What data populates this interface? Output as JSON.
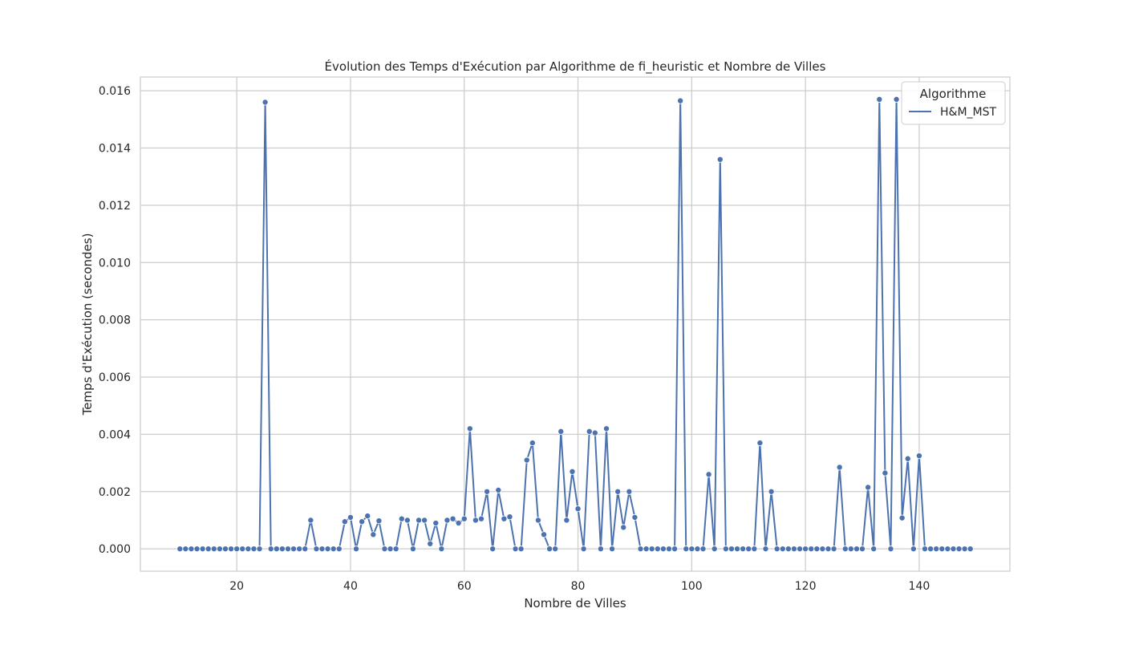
{
  "chart_data": {
    "type": "line",
    "title": "Évolution des Temps d'Exécution par Algorithme de fi_heuristic et Nombre de Villes",
    "xlabel": "Nombre de Villes",
    "ylabel": "Temps d'Exécution (secondes)",
    "xlim": [
      3.05,
      155.95
    ],
    "ylim": [
      -0.00078,
      0.01648
    ],
    "x_ticks": [
      20,
      40,
      60,
      80,
      100,
      120,
      140
    ],
    "x_tick_labels": [
      "20",
      "40",
      "60",
      "80",
      "100",
      "120",
      "140"
    ],
    "y_ticks": [
      0.0,
      0.002,
      0.004,
      0.006,
      0.008,
      0.01,
      0.012,
      0.014,
      0.016
    ],
    "y_tick_labels": [
      "0.000",
      "0.002",
      "0.004",
      "0.006",
      "0.008",
      "0.010",
      "0.012",
      "0.014",
      "0.016"
    ],
    "grid": true,
    "legend": {
      "title": "Algorithme",
      "placement": "top-right"
    },
    "colors": {
      "series": "#4c72b0",
      "grid": "#cccccc",
      "axes": "#cccccc",
      "text": "#262626"
    },
    "series": [
      {
        "name": "H&M_MST",
        "x_start": 10,
        "x_step": 1,
        "values": [
          0,
          0,
          0,
          0,
          0,
          0,
          0,
          0,
          0,
          0,
          0,
          0,
          0,
          0,
          0,
          0.0156,
          0,
          0,
          0,
          0,
          0,
          0,
          0,
          0.001,
          0,
          0,
          0,
          0,
          0,
          0.00095,
          0.0011,
          0,
          0.00095,
          0.00115,
          0.0005,
          0.00098,
          0,
          0,
          0,
          0.00105,
          0.001,
          0,
          0.001,
          0.001,
          0.00018,
          0.0009,
          0,
          0.001,
          0.00105,
          0.0009,
          0.00105,
          0.0042,
          0.001,
          0.00105,
          0.002,
          0,
          0.00205,
          0.00105,
          0.00112,
          0,
          0,
          0.0031,
          0.0037,
          0.001,
          0.0005,
          0,
          0,
          0.0041,
          0.001,
          0.0027,
          0.0014,
          0,
          0.0041,
          0.00405,
          0,
          0.0042,
          0,
          0.002,
          0.00075,
          0.002,
          0.0011,
          0,
          0,
          0,
          0,
          0,
          0,
          0,
          0.01565,
          0,
          0,
          0,
          0,
          0.0026,
          0,
          0.0136,
          0,
          0,
          0,
          0,
          0,
          0,
          0.0037,
          0,
          0.002,
          0,
          0,
          0,
          0,
          0,
          0,
          0,
          0,
          0,
          0,
          0,
          0.00285,
          0,
          0,
          0,
          0,
          0.00215,
          0,
          0.0157,
          0.00265,
          0,
          0.0157,
          0.00108,
          0.00315,
          0,
          0.00325,
          0,
          0,
          0,
          0,
          0,
          0,
          0,
          0,
          0
        ]
      }
    ]
  }
}
